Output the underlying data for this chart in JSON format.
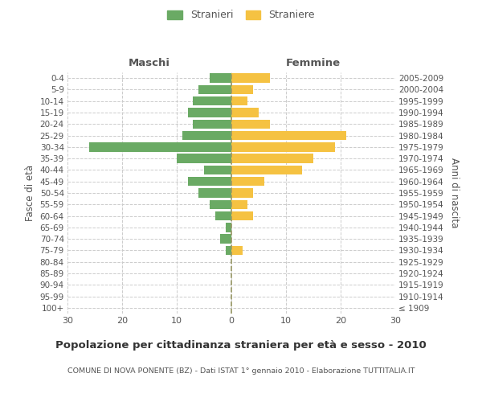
{
  "age_groups": [
    "100+",
    "95-99",
    "90-94",
    "85-89",
    "80-84",
    "75-79",
    "70-74",
    "65-69",
    "60-64",
    "55-59",
    "50-54",
    "45-49",
    "40-44",
    "35-39",
    "30-34",
    "25-29",
    "20-24",
    "15-19",
    "10-14",
    "5-9",
    "0-4"
  ],
  "birth_years": [
    "≤ 1909",
    "1910-1914",
    "1915-1919",
    "1920-1924",
    "1925-1929",
    "1930-1934",
    "1935-1939",
    "1940-1944",
    "1945-1949",
    "1950-1954",
    "1955-1959",
    "1960-1964",
    "1965-1969",
    "1970-1974",
    "1975-1979",
    "1980-1984",
    "1985-1989",
    "1990-1994",
    "1995-1999",
    "2000-2004",
    "2005-2009"
  ],
  "males": [
    0,
    0,
    0,
    0,
    0,
    1,
    2,
    1,
    3,
    4,
    6,
    8,
    5,
    10,
    26,
    9,
    7,
    8,
    7,
    6,
    4
  ],
  "females": [
    0,
    0,
    0,
    0,
    0,
    2,
    0,
    0,
    4,
    3,
    4,
    6,
    13,
    15,
    19,
    21,
    7,
    5,
    3,
    4,
    7
  ],
  "male_color": "#6aaa64",
  "female_color": "#f5c242",
  "background_color": "#ffffff",
  "grid_color": "#cccccc",
  "center_line_color": "#999966",
  "xlim": 30,
  "title": "Popolazione per cittadinanza straniera per età e sesso - 2010",
  "subtitle": "COMUNE DI NOVA PONENTE (BZ) - Dati ISTAT 1° gennaio 2010 - Elaborazione TUTTITALIA.IT",
  "ylabel_left": "Fasce di età",
  "ylabel_right": "Anni di nascita",
  "header_left": "Maschi",
  "header_right": "Femmine",
  "legend_male": "Stranieri",
  "legend_female": "Straniere",
  "bar_height": 0.8
}
